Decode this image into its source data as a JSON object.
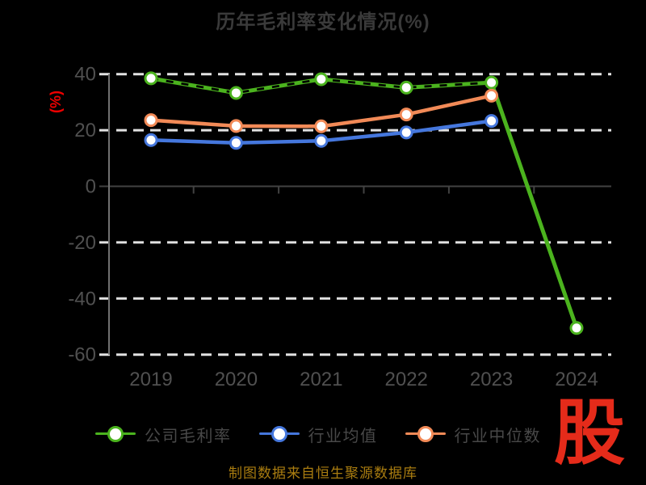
{
  "title": "历年毛利率变化情况(%)",
  "colors": {
    "background": "#000000",
    "title_text": "#3a3a3a",
    "axis_label_text": "#505050",
    "grid_dash": "#e2e2e2",
    "zero_line": "#424242",
    "axis_line": "#707070",
    "percent_label": "#ee0000",
    "footer_text": "#aa7d10",
    "logo_red": "#e52b1a"
  },
  "chart_data": {
    "type": "line",
    "title": "历年毛利率变化情况(%)",
    "xlabel": "",
    "ylabel": "(%)",
    "categories": [
      "2019",
      "2020",
      "2021",
      "2022",
      "2023",
      "2024"
    ],
    "series": [
      {
        "name": "公司毛利率",
        "color": "#4bb31e",
        "marker": "white-filled-circle",
        "line_style": "solid-with-black-dash-overlay",
        "values": [
          38.5,
          33.3,
          38.2,
          35.2,
          37.0,
          -50.5
        ]
      },
      {
        "name": "行业均值",
        "color": "#4577dd",
        "marker": "white-filled-circle",
        "line_style": "solid",
        "values": [
          16.5,
          15.5,
          16.2,
          19.2,
          23.3,
          null
        ]
      },
      {
        "name": "行业中位数",
        "color": "#f28a57",
        "marker": "white-filled-circle",
        "line_style": "solid",
        "values": [
          23.6,
          21.5,
          21.4,
          25.6,
          32.3,
          null
        ]
      }
    ],
    "ylim": [
      -60,
      40
    ],
    "yticks": [
      40,
      20,
      0,
      -20,
      -40,
      -60
    ],
    "grid": "horizontal-dashed",
    "legend_position": "bottom"
  },
  "footer": {
    "source_text": "制图数据来自恒生聚源数据库"
  },
  "logo": {
    "text": "股"
  }
}
